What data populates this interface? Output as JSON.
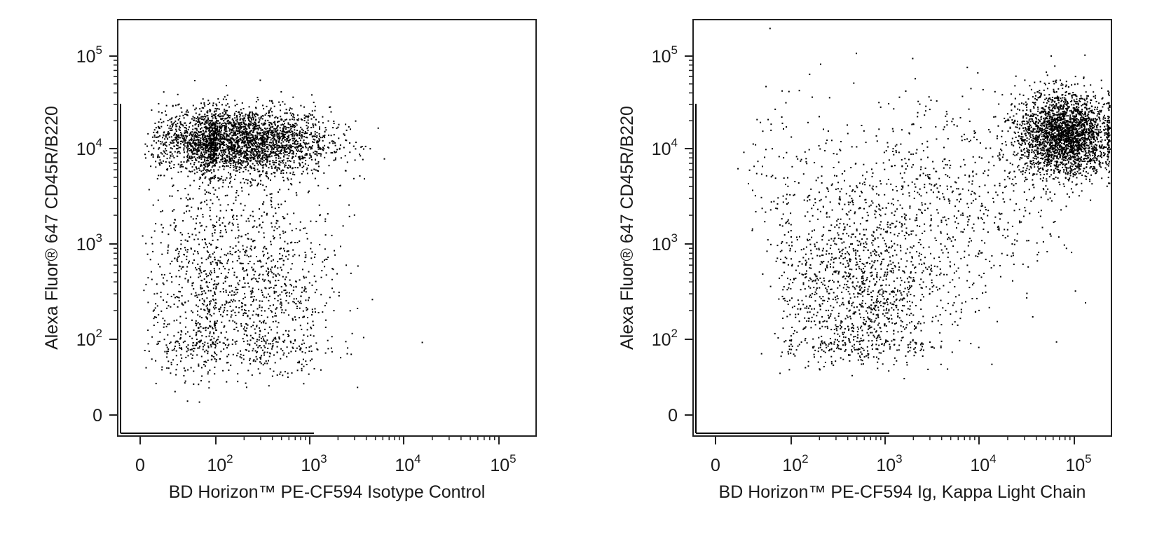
{
  "chart_data": [
    {
      "type": "scatter",
      "xlabel": "BD Horizon™ PE-CF594 Isotype Control",
      "ylabel": "Alexa Fluor® 647 CD45R/B220",
      "x_ticks": [
        {
          "base": "0",
          "exp": ""
        },
        {
          "base": "10",
          "exp": "2"
        },
        {
          "base": "10",
          "exp": "3"
        },
        {
          "base": "10",
          "exp": "4"
        },
        {
          "base": "10",
          "exp": "5"
        }
      ],
      "y_ticks": [
        {
          "base": "0",
          "exp": ""
        },
        {
          "base": "10",
          "exp": "2"
        },
        {
          "base": "10",
          "exp": "3"
        },
        {
          "base": "10",
          "exp": "4"
        },
        {
          "base": "10",
          "exp": "5"
        }
      ],
      "xscale": "biexponential",
      "yscale": "biexponential",
      "populations": [
        {
          "name": "",
          "x_center": 200,
          "y_center": 12000,
          "x_spread_decades": 0.45,
          "y_spread_decades": 0.18,
          "count": 2600
        },
        {
          "name": "",
          "x_center": 15,
          "y_center": 12000,
          "x_spread_decades": 0.6,
          "y_spread_decades": 0.15,
          "count": 500
        },
        {
          "name": "",
          "x_center": 300,
          "y_center": 300,
          "x_spread_decades": 0.4,
          "y_spread_decades": 0.6,
          "count": 900
        },
        {
          "name": "",
          "x_center": 30,
          "y_center": 300,
          "x_spread_decades": 0.8,
          "y_spread_decades": 0.7,
          "count": 700
        }
      ]
    },
    {
      "type": "scatter",
      "xlabel": "BD Horizon™ PE-CF594 Ig, Kappa Light Chain",
      "ylabel": "Alexa Fluor® 647 CD45R/B220",
      "x_ticks": [
        {
          "base": "0",
          "exp": ""
        },
        {
          "base": "10",
          "exp": "2"
        },
        {
          "base": "10",
          "exp": "3"
        },
        {
          "base": "10",
          "exp": "4"
        },
        {
          "base": "10",
          "exp": "5"
        }
      ],
      "y_ticks": [
        {
          "base": "0",
          "exp": ""
        },
        {
          "base": "10",
          "exp": "2"
        },
        {
          "base": "10",
          "exp": "3"
        },
        {
          "base": "10",
          "exp": "4"
        },
        {
          "base": "10",
          "exp": "5"
        }
      ],
      "xscale": "biexponential",
      "yscale": "biexponential",
      "populations": [
        {
          "name": "",
          "x_center": 80000,
          "y_center": 14000,
          "x_spread_decades": 0.25,
          "y_spread_decades": 0.22,
          "count": 2800
        },
        {
          "name": "",
          "x_center": 500,
          "y_center": 300,
          "x_spread_decades": 0.45,
          "y_spread_decades": 0.5,
          "count": 1300
        },
        {
          "name": "",
          "x_center": 5000,
          "y_center": 2500,
          "x_spread_decades": 0.6,
          "y_spread_decades": 0.5,
          "count": 600
        },
        {
          "name": "",
          "x_center": 300,
          "y_center": 5000,
          "x_spread_decades": 0.8,
          "y_spread_decades": 0.5,
          "count": 250
        }
      ]
    }
  ]
}
